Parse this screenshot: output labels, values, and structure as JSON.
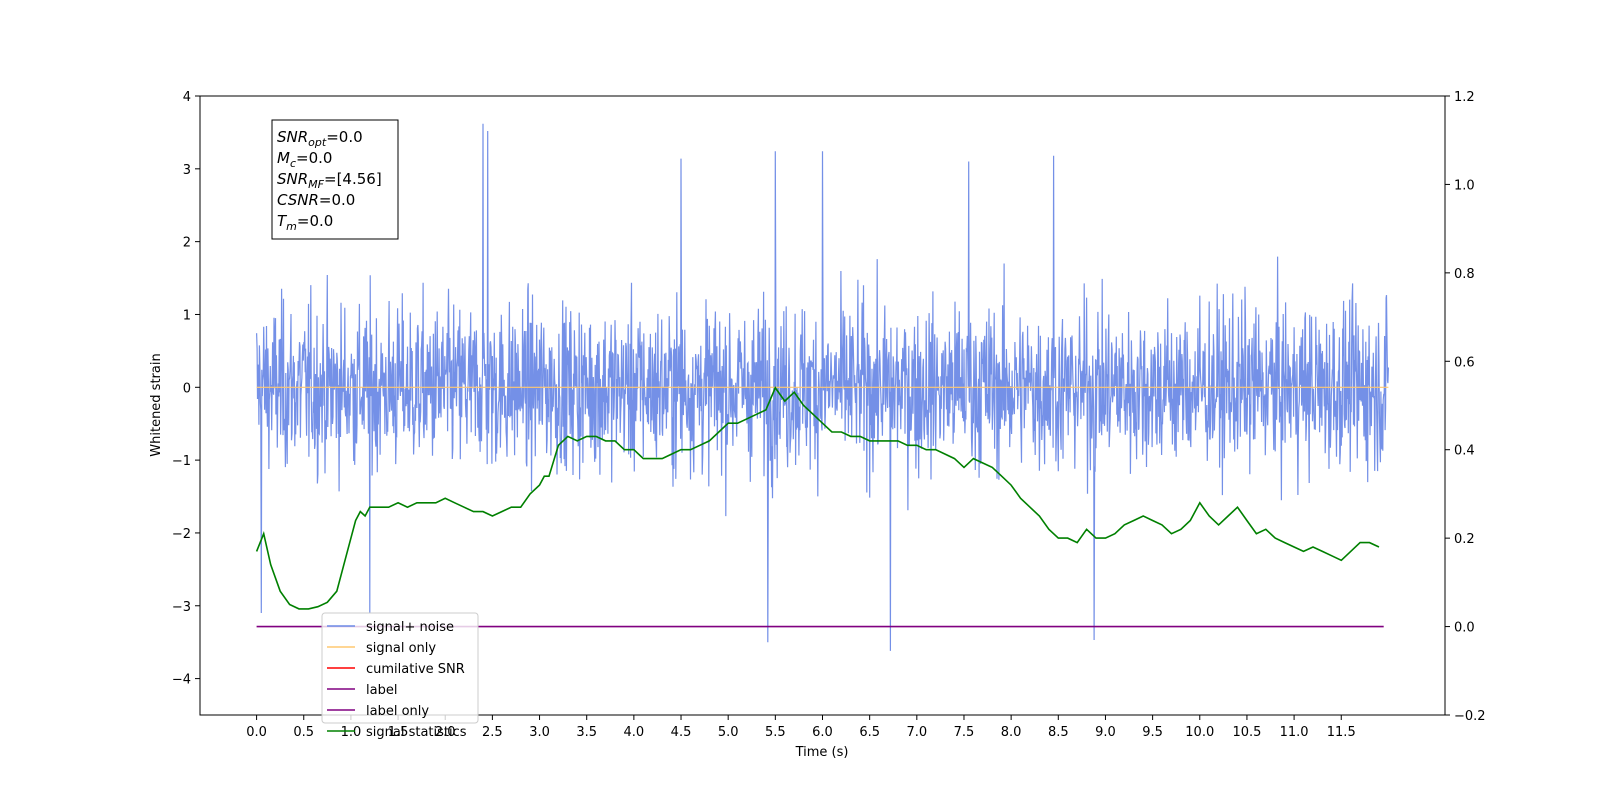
{
  "chart_data": {
    "type": "line",
    "xlabel": "Time (s)",
    "ylabel": "Whitened strain",
    "xlim": [
      -0.6,
      12.6
    ],
    "ylim": [
      -4.5,
      4.0
    ],
    "y2lim": [
      -0.2,
      1.2
    ],
    "x_ticks": [
      "0.0",
      "0.5",
      "1.0",
      "1.5",
      "2.0",
      "2.5",
      "3.0",
      "3.5",
      "4.0",
      "4.5",
      "5.0",
      "5.5",
      "6.0",
      "6.5",
      "7.0",
      "7.5",
      "8.0",
      "8.5",
      "9.0",
      "9.5",
      "10.0",
      "10.5",
      "11.0",
      "11.5"
    ],
    "y_ticks": [
      "−4",
      "−3",
      "−2",
      "−1",
      "0",
      "1",
      "2",
      "3",
      "4"
    ],
    "y2_ticks": [
      "−0.2",
      "0.0",
      "0.2",
      "0.4",
      "0.6",
      "0.8",
      "1.0",
      "1.2"
    ],
    "grid": false,
    "legend_position": "lower-left",
    "legend": [
      {
        "label": "signal+ noise",
        "color": "#6d8ae6"
      },
      {
        "label": "signal only",
        "color": "#ffc870"
      },
      {
        "label": "cumilative SNR",
        "color": "#ff0000"
      },
      {
        "label": "label",
        "color": "#800080"
      },
      {
        "label": "label only",
        "color": "#800080"
      },
      {
        "label": "signal statistics",
        "color": "#008000"
      }
    ],
    "annotation": {
      "lines": [
        {
          "main": "SNR",
          "sub": "opt",
          "rest": "=0.0"
        },
        {
          "main": "M",
          "sub": "c",
          "rest": "=0.0"
        },
        {
          "main": "SNR",
          "sub": "MF",
          "rest": "=[4.56]"
        },
        {
          "main": "CSNR",
          "sub": "",
          "rest": "=0.0"
        },
        {
          "main": "T",
          "sub": "m",
          "rest": "=0.0"
        }
      ]
    },
    "series": [
      {
        "name": "signal+ noise",
        "axis": "left",
        "color": "#6d8ae6",
        "x_range": [
          0.0,
          12.0
        ],
        "mean": 0.0,
        "band_upper_typical": 1.5,
        "band_lower_typical": -1.5,
        "spikes": [
          {
            "x": 2.4,
            "y": 3.62
          },
          {
            "x": 2.45,
            "y": 3.52
          },
          {
            "x": 5.5,
            "y": 3.24
          },
          {
            "x": 6.0,
            "y": 3.24
          },
          {
            "x": 4.5,
            "y": 3.14
          },
          {
            "x": 7.55,
            "y": 3.1
          },
          {
            "x": 8.45,
            "y": 3.18
          },
          {
            "x": 5.42,
            "y": -3.5
          },
          {
            "x": 6.72,
            "y": -3.62
          },
          {
            "x": 8.88,
            "y": -3.47
          },
          {
            "x": 0.05,
            "y": -3.1
          },
          {
            "x": 1.2,
            "y": -3.1
          }
        ]
      },
      {
        "name": "signal only",
        "axis": "left",
        "color": "#ffc870",
        "x": [
          0.0,
          12.0
        ],
        "y": [
          0.0,
          0.0
        ]
      },
      {
        "name": "label",
        "axis": "right",
        "color": "#800080",
        "x": [
          0.0,
          11.95
        ],
        "y": [
          0.0,
          0.0
        ]
      },
      {
        "name": "signal statistics",
        "axis": "right",
        "color": "#008000",
        "x": [
          0.0,
          0.075,
          0.15,
          0.25,
          0.35,
          0.45,
          0.55,
          0.65,
          0.75,
          0.85,
          0.95,
          1.05,
          1.1,
          1.15,
          1.2,
          1.3,
          1.4,
          1.5,
          1.6,
          1.7,
          1.8,
          1.9,
          2.0,
          2.1,
          2.2,
          2.3,
          2.4,
          2.5,
          2.6,
          2.7,
          2.8,
          2.9,
          3.0,
          3.05,
          3.1,
          3.2,
          3.3,
          3.4,
          3.5,
          3.6,
          3.7,
          3.8,
          3.9,
          4.0,
          4.1,
          4.2,
          4.3,
          4.4,
          4.5,
          4.6,
          4.7,
          4.8,
          4.9,
          5.0,
          5.1,
          5.2,
          5.3,
          5.4,
          5.5,
          5.6,
          5.7,
          5.8,
          5.9,
          6.0,
          6.1,
          6.2,
          6.3,
          6.4,
          6.5,
          6.6,
          6.7,
          6.8,
          6.9,
          7.0,
          7.1,
          7.2,
          7.3,
          7.4,
          7.5,
          7.6,
          7.7,
          7.8,
          7.9,
          8.0,
          8.1,
          8.2,
          8.3,
          8.4,
          8.5,
          8.6,
          8.7,
          8.8,
          8.9,
          9.0,
          9.1,
          9.2,
          9.3,
          9.4,
          9.5,
          9.6,
          9.7,
          9.8,
          9.9,
          10.0,
          10.1,
          10.2,
          10.3,
          10.4,
          10.5,
          10.6,
          10.7,
          10.8,
          10.9,
          11.0,
          11.1,
          11.2,
          11.3,
          11.4,
          11.5,
          11.6,
          11.7,
          11.8,
          11.9
        ],
        "y": [
          0.17,
          0.21,
          0.14,
          0.08,
          0.05,
          0.04,
          0.04,
          0.045,
          0.055,
          0.08,
          0.16,
          0.24,
          0.26,
          0.25,
          0.27,
          0.27,
          0.27,
          0.28,
          0.27,
          0.28,
          0.28,
          0.28,
          0.29,
          0.28,
          0.27,
          0.26,
          0.26,
          0.25,
          0.26,
          0.27,
          0.27,
          0.3,
          0.32,
          0.34,
          0.34,
          0.41,
          0.43,
          0.42,
          0.43,
          0.43,
          0.42,
          0.42,
          0.4,
          0.4,
          0.38,
          0.38,
          0.38,
          0.39,
          0.4,
          0.4,
          0.41,
          0.42,
          0.44,
          0.46,
          0.46,
          0.47,
          0.48,
          0.49,
          0.54,
          0.51,
          0.53,
          0.5,
          0.48,
          0.46,
          0.44,
          0.44,
          0.43,
          0.43,
          0.42,
          0.42,
          0.42,
          0.42,
          0.41,
          0.41,
          0.4,
          0.4,
          0.39,
          0.38,
          0.36,
          0.38,
          0.37,
          0.36,
          0.34,
          0.32,
          0.29,
          0.27,
          0.25,
          0.22,
          0.2,
          0.2,
          0.19,
          0.22,
          0.2,
          0.2,
          0.21,
          0.23,
          0.24,
          0.25,
          0.24,
          0.23,
          0.21,
          0.22,
          0.24,
          0.28,
          0.25,
          0.23,
          0.25,
          0.27,
          0.24,
          0.21,
          0.22,
          0.2,
          0.19,
          0.18,
          0.17,
          0.18,
          0.17,
          0.16,
          0.15,
          0.17,
          0.19,
          0.19,
          0.18
        ]
      }
    ]
  }
}
